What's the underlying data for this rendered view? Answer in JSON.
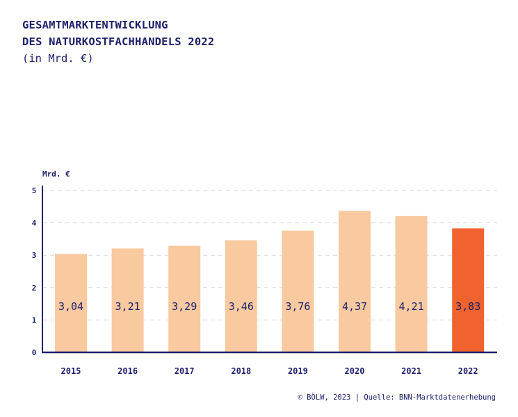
{
  "title": {
    "line1": "GESAMTMARKTENTWICKLUNG",
    "line2": "DES NATURKOSTFACHHANDELS 2022",
    "unit": "(in Mrd. €)"
  },
  "footer": "© BÖLW, 2023 | Quelle: BNN-Marktdatenerhebung",
  "colors": {
    "text": "#1d1f6b",
    "bar": "#f9c9a0",
    "highlight": "#f0622e",
    "grid": "#d9d9e0"
  },
  "chart_data": {
    "type": "bar",
    "ylabel": "Mrd. €",
    "ylim": [
      0,
      5
    ],
    "yticks": [
      0,
      1,
      2,
      3,
      4,
      5
    ],
    "grid": true,
    "categories": [
      "2015",
      "2016",
      "2017",
      "2018",
      "2019",
      "2020",
      "2021",
      "2022"
    ],
    "values": [
      3.04,
      3.21,
      3.29,
      3.46,
      3.76,
      4.37,
      4.21,
      3.83
    ],
    "value_labels": [
      "3,04",
      "3,21",
      "3,29",
      "3,46",
      "3,76",
      "4,37",
      "4,21",
      "3,83"
    ],
    "highlight_category": "2022"
  }
}
